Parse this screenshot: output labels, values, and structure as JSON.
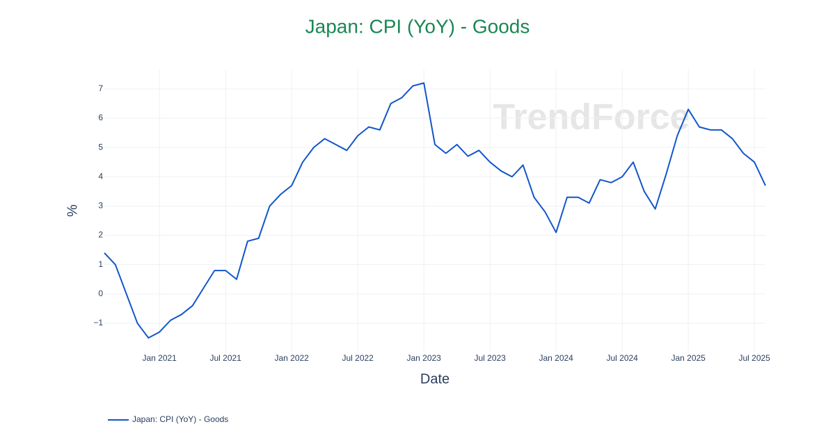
{
  "chart_data": {
    "type": "line",
    "title": "Japan: CPI (YoY) - Goods",
    "x_label": "Date",
    "y_label": "%",
    "watermark": "TrendForce",
    "x": [
      "2020-08",
      "2020-09",
      "2020-10",
      "2020-11",
      "2020-12",
      "2021-01",
      "2021-02",
      "2021-03",
      "2021-04",
      "2021-05",
      "2021-06",
      "2021-07",
      "2021-08",
      "2021-09",
      "2021-10",
      "2021-11",
      "2021-12",
      "2022-01",
      "2022-02",
      "2022-03",
      "2022-04",
      "2022-05",
      "2022-06",
      "2022-07",
      "2022-08",
      "2022-09",
      "2022-10",
      "2022-11",
      "2022-12",
      "2023-01",
      "2023-02",
      "2023-03",
      "2023-04",
      "2023-05",
      "2023-06",
      "2023-07",
      "2023-08",
      "2023-09",
      "2023-10",
      "2023-11",
      "2023-12",
      "2024-01",
      "2024-02",
      "2024-03",
      "2024-04",
      "2024-05",
      "2024-06",
      "2024-07",
      "2024-08",
      "2024-09",
      "2024-10",
      "2024-11",
      "2024-12",
      "2025-01",
      "2025-02",
      "2025-03",
      "2025-04",
      "2025-05",
      "2025-06",
      "2025-07",
      "2025-08"
    ],
    "series": [
      {
        "name": "Japan: CPI (YoY) - Goods",
        "color": "#1155cc",
        "values": [
          1.4,
          1.0,
          0.0,
          -1.0,
          -1.5,
          -1.3,
          -0.9,
          -0.7,
          -0.4,
          0.2,
          0.8,
          0.8,
          0.5,
          1.8,
          1.9,
          3.0,
          3.4,
          3.7,
          4.5,
          5.0,
          5.3,
          5.1,
          4.9,
          5.4,
          5.7,
          5.6,
          6.5,
          6.7,
          7.1,
          7.2,
          5.1,
          4.8,
          5.1,
          4.7,
          4.9,
          4.5,
          4.2,
          4.0,
          4.4,
          3.3,
          2.8,
          2.1,
          3.3,
          3.3,
          3.1,
          3.9,
          3.8,
          4.0,
          4.5,
          3.5,
          2.9,
          4.1,
          5.4,
          6.3,
          5.7,
          5.6,
          5.6,
          5.3,
          4.8,
          4.5,
          3.7
        ]
      }
    ],
    "xlim": [
      "2020-08",
      "2025-08"
    ],
    "xticks": [
      {
        "value": "2021-01",
        "label": "Jan 2021"
      },
      {
        "value": "2021-07",
        "label": "Jul 2021"
      },
      {
        "value": "2022-01",
        "label": "Jan 2022"
      },
      {
        "value": "2022-07",
        "label": "Jul 2022"
      },
      {
        "value": "2023-01",
        "label": "Jan 2023"
      },
      {
        "value": "2023-07",
        "label": "Jul 2023"
      },
      {
        "value": "2024-01",
        "label": "Jan 2024"
      },
      {
        "value": "2024-07",
        "label": "Jul 2024"
      },
      {
        "value": "2025-01",
        "label": "Jan 2025"
      },
      {
        "value": "2025-07",
        "label": "Jul 2025"
      }
    ],
    "ylim": [
      -1.95,
      7.66
    ],
    "yticks": [
      {
        "value": -1,
        "label": "−1"
      },
      0,
      1,
      2,
      3,
      4,
      5,
      6,
      7
    ],
    "grid": true,
    "legend": "bottom-left"
  }
}
